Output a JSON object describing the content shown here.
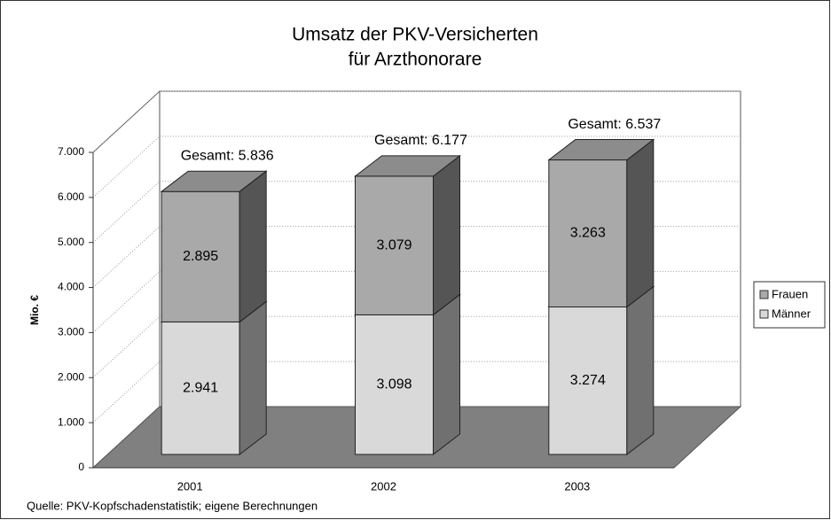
{
  "chart_data": {
    "type": "bar3d_stacked",
    "title": [
      "Umsatz der PKV-Versicherten",
      "für Arzthonorare"
    ],
    "y_label": "Mio. €",
    "source": "Quelle: PKV-Kopfschadenstatistik; eigene Berechnungen",
    "categories": [
      "2001",
      "2002",
      "2003"
    ],
    "series": [
      {
        "name": "Männer",
        "color": "#d9d9d9",
        "side_color": "#707070",
        "values": [
          2941,
          3098,
          3274
        ],
        "value_labels": [
          "2.941",
          "3.098",
          "3.274"
        ]
      },
      {
        "name": "Frauen",
        "color": "#a9a9a9",
        "side_color": "#555555",
        "values": [
          2895,
          3079,
          3263
        ],
        "value_labels": [
          "2.895",
          "3.079",
          "3.263"
        ]
      }
    ],
    "annotations": [
      "Gesamt: 5.836",
      "Gesamt: 6.177",
      "Gesamt: 6.537"
    ],
    "ylim": [
      0,
      7000
    ],
    "yticks": [
      0,
      {
        "value": 1000,
        "label": "1.000"
      },
      {
        "value": 2000,
        "label": "2.000"
      },
      {
        "value": 3000,
        "label": "3.000"
      },
      {
        "value": 4000,
        "label": "4.000"
      },
      {
        "value": 5000,
        "label": "5.000"
      },
      {
        "value": 6000,
        "label": "6.000"
      },
      {
        "value": 7000,
        "label": "7.000"
      }
    ],
    "grid": true,
    "legend": "right",
    "floor_color": "#808080"
  }
}
